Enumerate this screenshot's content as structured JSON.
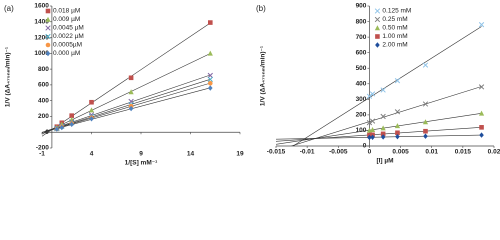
{
  "chart_data": [
    {
      "type": "scatter",
      "title": "(a)",
      "xlabel": "1/[S] mM⁻¹",
      "ylabel": "1/V (ΔA₄₇₅ₙₘ/min)⁻¹",
      "x": [
        0.5,
        1,
        2,
        4,
        8,
        16
      ],
      "xlim": [
        -1,
        19
      ],
      "ylim": [
        -200,
        1600
      ],
      "xticks": [
        -1,
        4,
        9,
        14,
        19
      ],
      "yticks": [
        -200,
        0,
        200,
        400,
        600,
        800,
        1000,
        1200,
        1400,
        1600
      ],
      "legend": "upper left",
      "trendline": true,
      "series": [
        {
          "name": "0.018 µM",
          "color": "#c0504d",
          "marker": "square",
          "values": [
            70,
            120,
            210,
            380,
            690,
            1390
          ]
        },
        {
          "name": "0.009 µM",
          "color": "#9bbb59",
          "marker": "triangle",
          "values": [
            60,
            100,
            160,
            280,
            510,
            1000
          ]
        },
        {
          "name": "0.0045 µM",
          "color": "#8064a2",
          "marker": "x",
          "values": [
            50,
            80,
            130,
            220,
            390,
            720
          ]
        },
        {
          "name": "0.0022 µM",
          "color": "#4bacc6",
          "marker": "x",
          "values": [
            45,
            75,
            120,
            200,
            350,
            670
          ]
        },
        {
          "name": "0.0005µM",
          "color": "#f79646",
          "marker": "circle",
          "values": [
            42,
            70,
            110,
            185,
            330,
            620
          ]
        },
        {
          "name": "0.000 µM",
          "color": "#4f81bd",
          "marker": "diamond",
          "values": [
            40,
            60,
            100,
            170,
            300,
            560
          ]
        }
      ]
    },
    {
      "type": "scatter",
      "title": "(b)",
      "xlabel": "[I] µM",
      "ylabel": "1/V (ΔA₄₇₅ₙₘ/min)⁻¹",
      "x": [
        0,
        0.0005,
        0.0022,
        0.0045,
        0.009,
        0.018
      ],
      "xlim": [
        -0.015,
        0.02
      ],
      "ylim": [
        0,
        900
      ],
      "xticks": [
        -0.015,
        -0.01,
        -0.005,
        0,
        0.005,
        0.01,
        0.015,
        0.02
      ],
      "yticks": [
        0,
        100,
        200,
        300,
        400,
        500,
        600,
        700,
        800,
        900
      ],
      "legend": "upper left",
      "trendline": true,
      "series": [
        {
          "name": "0.125 mM",
          "color": "#8fc3e8",
          "marker": "x",
          "values": [
            320,
            335,
            360,
            420,
            520,
            780
          ]
        },
        {
          "name": "0.25 mM",
          "color": "#7f7f7f",
          "marker": "x",
          "values": [
            150,
            160,
            190,
            220,
            270,
            380
          ]
        },
        {
          "name": "0.50 mM",
          "color": "#9bbb59",
          "marker": "triangle",
          "values": [
            100,
            105,
            115,
            130,
            155,
            210
          ]
        },
        {
          "name": "1.00 mM",
          "color": "#c0504d",
          "marker": "square",
          "values": [
            70,
            72,
            78,
            85,
            95,
            120
          ]
        },
        {
          "name": "2.00 mM",
          "color": "#1f4e9c",
          "marker": "diamond",
          "values": [
            55,
            56,
            58,
            60,
            63,
            70
          ]
        }
      ]
    }
  ]
}
